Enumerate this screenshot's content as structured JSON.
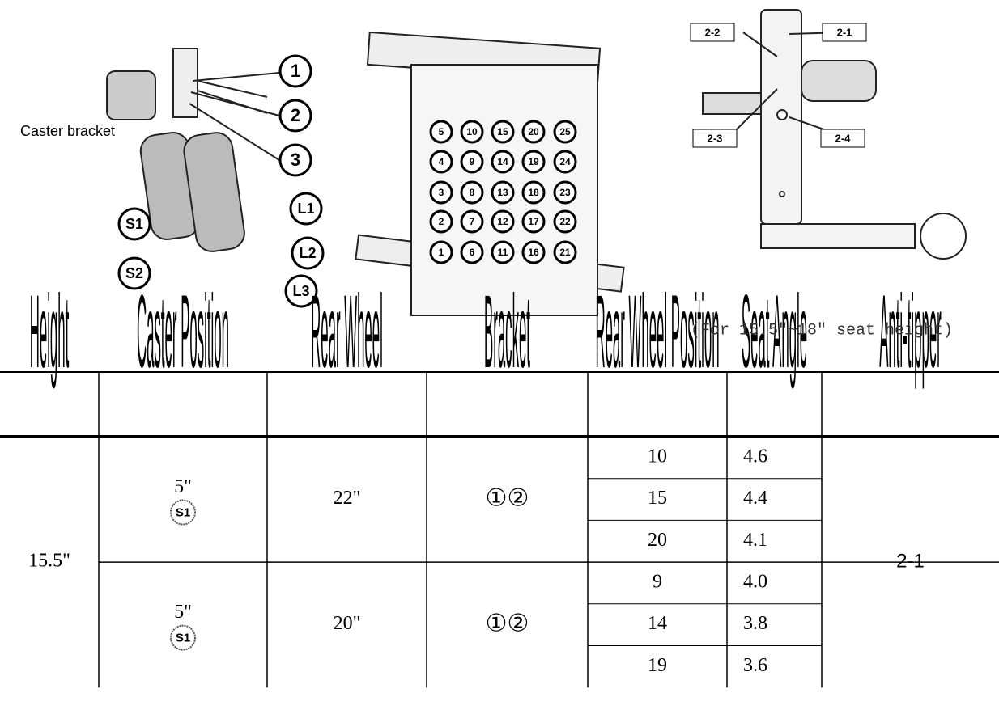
{
  "diagrams": {
    "caster": {
      "label": "Caster bracket",
      "holes": [
        "1",
        "2",
        "3"
      ],
      "forks": [
        "S1",
        "S2",
        "L1",
        "L2",
        "L3"
      ]
    },
    "grid": {
      "rows": [
        [
          "5",
          "10",
          "15",
          "20",
          "25"
        ],
        [
          "4",
          "9",
          "14",
          "19",
          "24"
        ],
        [
          "3",
          "8",
          "13",
          "18",
          "23"
        ],
        [
          "2",
          "7",
          "12",
          "17",
          "22"
        ],
        [
          "1",
          "6",
          "11",
          "16",
          "21"
        ]
      ]
    },
    "anti_tipper": {
      "labels": [
        "2-1",
        "2-2",
        "2-3",
        "2-4"
      ]
    }
  },
  "table": {
    "headers": [
      "Height",
      "Caster Position",
      "Rear Wheel",
      "Bracket",
      "Rear Wheel Position",
      "Seat Angle",
      "Anti-tipper"
    ],
    "seat_angle_note": "(For 15.5\"~18\" seat height)",
    "height": "15.5\"",
    "groups": [
      {
        "caster": "5\"",
        "caster_icon": "S1",
        "rear_wheel": "22\"",
        "bracket": "①②",
        "rows": [
          [
            "10",
            "4.6"
          ],
          [
            "15",
            "4.4"
          ],
          [
            "20",
            "4.1"
          ]
        ]
      },
      {
        "caster": "5\"",
        "caster_icon": "S1",
        "rear_wheel": "20\"",
        "bracket": "①②",
        "rows": [
          [
            "9",
            "4.0"
          ],
          [
            "14",
            "3.8"
          ],
          [
            "19",
            "3.6"
          ]
        ]
      }
    ],
    "anti_tipper": "2-1"
  }
}
